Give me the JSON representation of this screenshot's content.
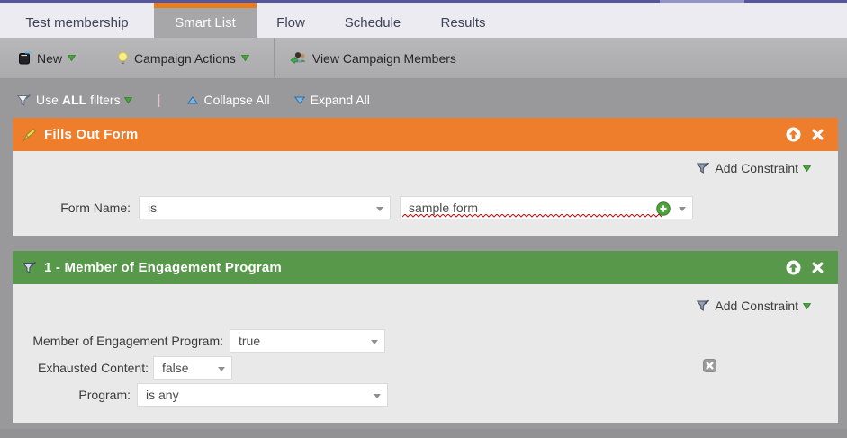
{
  "tabs": {
    "items": [
      {
        "label": "Test membership",
        "selected": false
      },
      {
        "label": "Smart List",
        "selected": true
      },
      {
        "label": "Flow",
        "selected": false
      },
      {
        "label": "Schedule",
        "selected": false
      },
      {
        "label": "Results",
        "selected": false
      }
    ]
  },
  "toolbar": {
    "new_label": "New",
    "campaign_actions_label": "Campaign Actions",
    "view_campaign_members_label": "View Campaign Members"
  },
  "filter_bar": {
    "use_label_prefix": "Use",
    "use_label_bold": "ALL",
    "use_label_suffix": "filters",
    "divider": "|",
    "collapse_all_label": "Collapse All",
    "expand_all_label": "Expand All"
  },
  "fills_out_form_panel": {
    "title": "Fills Out Form",
    "add_constraint_label": "Add Constraint",
    "form_name_label": "Form Name:",
    "operator_value": "is",
    "form_value": "sample form"
  },
  "engagement_panel": {
    "title": "1 - Member of Engagement Program",
    "add_constraint_label": "Add Constraint",
    "rows": [
      {
        "label": "Member of Engagement Program:",
        "value": "true"
      },
      {
        "label": "Exhausted Content:",
        "value": "false"
      },
      {
        "label": "Program:",
        "value": "is any"
      }
    ]
  },
  "icons": {
    "new": "notebook-icon",
    "campaign_actions": "lightbulb-icon",
    "view_campaign_members": "people-arrow-icon",
    "use_filters": "funnel-icon",
    "panel_orange": "pencil-icon",
    "panel_green": "funnel-icon",
    "collapse": "blue-triangle-up",
    "expand": "blue-triangle-down",
    "header_actions": [
      "circle-up-arrow-icon",
      "close-x-icon"
    ],
    "form_value_add": "green-plus-icon",
    "remove_constraint": "gray-x-square-icon"
  },
  "colors": {
    "accent_purple": "#55569d",
    "active_tab_orange": "#e87c1e",
    "panel_orange": "#ee7d2c",
    "panel_green": "#58984a",
    "toolbar_gray": "#b1b1b4",
    "workspace_gray": "#99989b",
    "panel_body_gray": "#e9e9e9",
    "spellcheck_red": "#bb1111",
    "menu_caret_green": "#49a33b",
    "triangle_blue": "#7db3dc"
  }
}
